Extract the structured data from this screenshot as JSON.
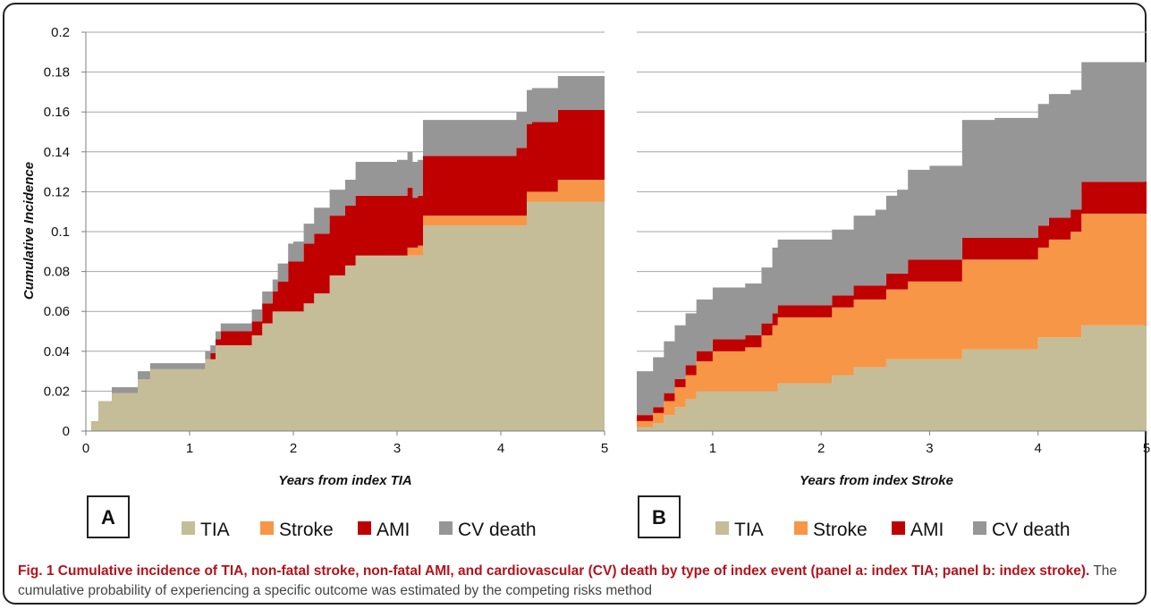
{
  "caption": {
    "title": "Fig. 1 Cumulative incidence of TIA, non-fatal stroke, non-fatal AMI, and cardiovascular (CV) death by type of index event (panel a: index TIA; panel b: index stroke).",
    "body": " The cumulative probability of experiencing a specific outcome was estimated by the competing risks method"
  },
  "legend": [
    {
      "key": "TIA",
      "label": "TIA",
      "color": "#c4bd97"
    },
    {
      "key": "Stroke",
      "label": "Stroke",
      "color": "#f79646"
    },
    {
      "key": "AMI",
      "label": "AMI",
      "color": "#c00000"
    },
    {
      "key": "CVdeath",
      "label": "CV death",
      "color": "#969696"
    }
  ],
  "chart_data": [
    {
      "type": "area",
      "stacked": true,
      "step": true,
      "panel": "A",
      "xlabel": "Years from index TIA",
      "ylabel": "Cumulative   Incidence",
      "xlim": [
        0,
        5
      ],
      "ylim": [
        0,
        0.2
      ],
      "xticks": [
        "0",
        "1",
        "2",
        "3",
        "4",
        "5"
      ],
      "yticks": [
        "0",
        "0.02",
        "0.04",
        "0.06",
        "0.08",
        "0.1",
        "0.12",
        "0.14",
        "0.16",
        "0.18",
        "0.2"
      ],
      "grid": true,
      "series": [
        {
          "name": "TIA",
          "color": "#c4bd97",
          "points": [
            [
              0,
              0
            ],
            [
              0.05,
              0.005
            ],
            [
              0.12,
              0.015
            ],
            [
              0.25,
              0.019
            ],
            [
              0.5,
              0.026
            ],
            [
              0.62,
              0.031
            ],
            [
              1.0,
              0.031
            ],
            [
              1.15,
              0.036
            ],
            [
              1.25,
              0.043
            ],
            [
              1.6,
              0.048
            ],
            [
              1.7,
              0.054
            ],
            [
              1.8,
              0.06
            ],
            [
              2.1,
              0.064
            ],
            [
              2.2,
              0.069
            ],
            [
              2.35,
              0.078
            ],
            [
              2.5,
              0.083
            ],
            [
              2.6,
              0.088
            ],
            [
              3.0,
              0.088
            ],
            [
              3.25,
              0.103
            ],
            [
              4.1,
              0.103
            ],
            [
              4.25,
              0.115
            ],
            [
              5.0,
              0.115
            ]
          ]
        },
        {
          "name": "Stroke",
          "color": "#f79646",
          "points": [
            [
              0,
              0
            ],
            [
              3.0,
              0
            ],
            [
              3.1,
              0.004
            ],
            [
              3.2,
              0.005
            ],
            [
              4.15,
              0.005
            ],
            [
              4.55,
              0.011
            ],
            [
              5.0,
              0.011
            ]
          ]
        },
        {
          "name": "AMI",
          "color": "#c00000",
          "points": [
            [
              0,
              0
            ],
            [
              1.15,
              0
            ],
            [
              1.2,
              0.003
            ],
            [
              1.3,
              0.007
            ],
            [
              1.6,
              0.007
            ],
            [
              1.7,
              0.01
            ],
            [
              1.85,
              0.015
            ],
            [
              1.95,
              0.025
            ],
            [
              2.1,
              0.03
            ],
            [
              2.2,
              0.03
            ],
            [
              2.35,
              0.03
            ],
            [
              2.5,
              0.03
            ],
            [
              3.0,
              0.03
            ],
            [
              3.15,
              0.025
            ],
            [
              3.25,
              0.03
            ],
            [
              4.15,
              0.034
            ],
            [
              4.3,
              0.035
            ],
            [
              5.0,
              0.036
            ]
          ]
        },
        {
          "name": "CV death",
          "color": "#969696",
          "points": [
            [
              0,
              0
            ],
            [
              0.25,
              0.003
            ],
            [
              0.5,
              0.004
            ],
            [
              0.62,
              0.003
            ],
            [
              1.15,
              0.004
            ],
            [
              1.3,
              0.004
            ],
            [
              1.6,
              0.006
            ],
            [
              1.85,
              0.009
            ],
            [
              2.0,
              0.01
            ],
            [
              2.2,
              0.013
            ],
            [
              2.4,
              0.013
            ],
            [
              2.6,
              0.017
            ],
            [
              3.0,
              0.018
            ],
            [
              3.25,
              0.018
            ],
            [
              4.1,
              0.018
            ],
            [
              4.25,
              0.017
            ],
            [
              4.5,
              0.017
            ],
            [
              5.0,
              0.017
            ]
          ]
        }
      ]
    },
    {
      "type": "area",
      "stacked": true,
      "step": true,
      "panel": "B",
      "xlabel": "Years from index Stroke",
      "ylabel": "",
      "xlim": [
        0.3,
        5
      ],
      "ylim": [
        0,
        0.2
      ],
      "xticks": [
        "1",
        "2",
        "3",
        "4",
        "5"
      ],
      "yticks": [],
      "grid": true,
      "series": [
        {
          "name": "TIA",
          "color": "#c4bd97",
          "points": [
            [
              0.3,
              0.002
            ],
            [
              0.45,
              0.004
            ],
            [
              0.55,
              0.008
            ],
            [
              0.65,
              0.012
            ],
            [
              0.75,
              0.016
            ],
            [
              0.85,
              0.02
            ],
            [
              1.5,
              0.02
            ],
            [
              1.6,
              0.024
            ],
            [
              2.1,
              0.028
            ],
            [
              2.3,
              0.032
            ],
            [
              2.6,
              0.036
            ],
            [
              3.3,
              0.041
            ],
            [
              4.0,
              0.047
            ],
            [
              4.4,
              0.053
            ],
            [
              5.0,
              0.053
            ]
          ]
        },
        {
          "name": "Stroke",
          "color": "#f79646",
          "points": [
            [
              0.3,
              0.003
            ],
            [
              0.45,
              0.005
            ],
            [
              0.55,
              0.007
            ],
            [
              0.65,
              0.01
            ],
            [
              0.75,
              0.012
            ],
            [
              0.85,
              0.015
            ],
            [
              1.0,
              0.02
            ],
            [
              1.3,
              0.022
            ],
            [
              1.45,
              0.028
            ],
            [
              1.55,
              0.033
            ],
            [
              2.1,
              0.034
            ],
            [
              2.3,
              0.034
            ],
            [
              2.6,
              0.035
            ],
            [
              2.8,
              0.039
            ],
            [
              3.3,
              0.045
            ],
            [
              4.0,
              0.045
            ],
            [
              4.1,
              0.049
            ],
            [
              4.3,
              0.053
            ],
            [
              4.4,
              0.056
            ],
            [
              5.0,
              0.056
            ]
          ]
        },
        {
          "name": "AMI",
          "color": "#c00000",
          "points": [
            [
              0.3,
              0.003
            ],
            [
              0.45,
              0.003
            ],
            [
              0.55,
              0.004
            ],
            [
              0.65,
              0.004
            ],
            [
              0.75,
              0.005
            ],
            [
              0.85,
              0.005
            ],
            [
              1.0,
              0.006
            ],
            [
              1.3,
              0.006
            ],
            [
              1.45,
              0.006
            ],
            [
              1.55,
              0.006
            ],
            [
              2.1,
              0.006
            ],
            [
              2.3,
              0.007
            ],
            [
              2.6,
              0.008
            ],
            [
              2.8,
              0.011
            ],
            [
              3.3,
              0.011
            ],
            [
              3.6,
              0.011
            ],
            [
              4.0,
              0.011
            ],
            [
              4.1,
              0.011
            ],
            [
              4.3,
              0.011
            ],
            [
              4.4,
              0.016
            ],
            [
              5.0,
              0.016
            ]
          ]
        },
        {
          "name": "CV death",
          "color": "#969696",
          "points": [
            [
              0.3,
              0.022
            ],
            [
              0.45,
              0.025
            ],
            [
              0.55,
              0.026
            ],
            [
              0.65,
              0.027
            ],
            [
              0.75,
              0.026
            ],
            [
              0.85,
              0.026
            ],
            [
              1.0,
              0.026
            ],
            [
              1.3,
              0.026
            ],
            [
              1.45,
              0.028
            ],
            [
              1.55,
              0.033
            ],
            [
              2.1,
              0.033
            ],
            [
              2.3,
              0.035
            ],
            [
              2.5,
              0.038
            ],
            [
              2.6,
              0.039
            ],
            [
              2.7,
              0.042
            ],
            [
              2.8,
              0.045
            ],
            [
              3.0,
              0.047
            ],
            [
              3.3,
              0.059
            ],
            [
              3.6,
              0.06
            ],
            [
              4.0,
              0.061
            ],
            [
              4.1,
              0.062
            ],
            [
              4.3,
              0.06
            ],
            [
              4.4,
              0.06
            ],
            [
              5.0,
              0.06
            ]
          ]
        }
      ]
    }
  ]
}
